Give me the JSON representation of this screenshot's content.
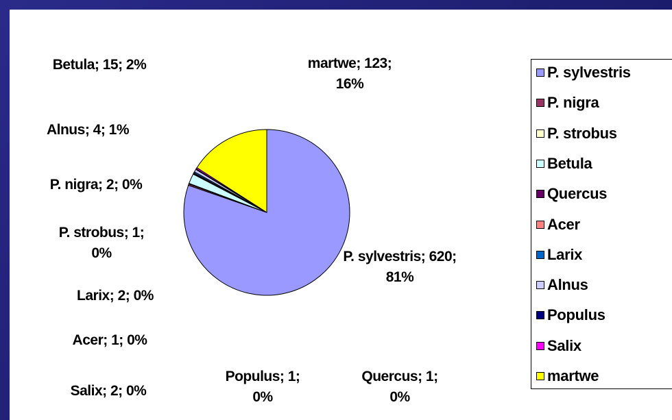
{
  "chart_data": {
    "type": "pie",
    "categories": [
      "P. sylvestris",
      "P. nigra",
      "P. strobus",
      "Betula",
      "Quercus",
      "Acer",
      "Larix",
      "Alnus",
      "Populus",
      "Salix",
      "martwe"
    ],
    "values": [
      620,
      2,
      1,
      15,
      1,
      1,
      2,
      4,
      1,
      2,
      123
    ],
    "value_labels": [
      "P. sylvestris; 620; 81%",
      "P. nigra; 2; 0%",
      "P. strobus; 1; 0%",
      "Betula; 15; 2%",
      "Quercus; 1; 0%",
      "Acer; 1; 0%",
      "Larix; 2; 0%",
      "Alnus; 4; 1%",
      "Populus; 1; 0%",
      "Salix; 2; 0%",
      "martwe; 123; 16%"
    ],
    "colors": [
      "#9999ff",
      "#993366",
      "#ffffcc",
      "#ccffff",
      "#660066",
      "#ff8080",
      "#0066cc",
      "#ccccff",
      "#000080",
      "#ff00ff",
      "#ffff00"
    ],
    "legend": "right"
  }
}
